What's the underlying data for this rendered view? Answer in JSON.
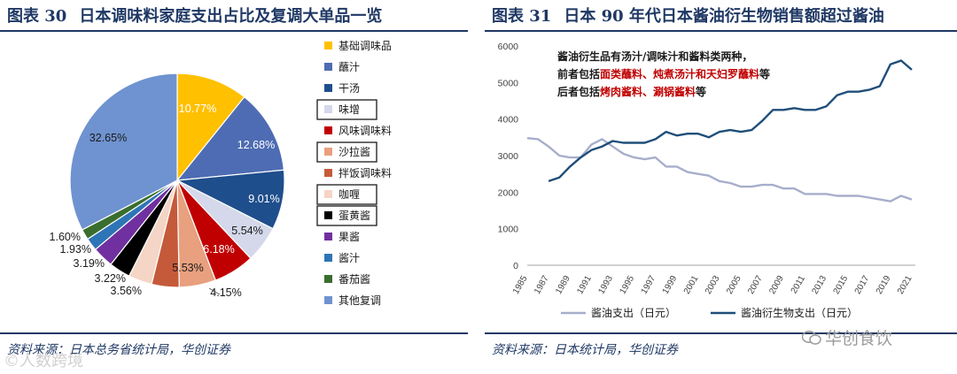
{
  "left": {
    "fig_no": "图表 30",
    "title": "日本调味料家庭支出占比及复调大单品一览",
    "source": "资料来源：日本总务省统计局，华创证券",
    "chart_data": {
      "type": "pie",
      "labels": [
        "基础调味品",
        "蘸汁",
        "干汤",
        "味增",
        "风味调味料",
        "沙拉酱",
        "拌饭调味料",
        "咖喱",
        "蛋黄酱",
        "果酱",
        "酱汁",
        "番茄酱",
        "其他复调"
      ],
      "values": [
        10.77,
        12.68,
        9.01,
        5.54,
        6.18,
        5.53,
        4.15,
        3.56,
        3.22,
        3.19,
        1.93,
        1.6,
        32.65
      ],
      "value_labels": [
        "10.77%",
        "12.68%",
        "9.01%",
        "5.54%",
        "6.18%",
        "5.53%",
        "4.15%",
        "3.56%",
        "3.22%",
        "3.19%",
        "1.93%",
        "1.60%",
        "32.65%"
      ],
      "colors": [
        "#FFC000",
        "#4E6CB3",
        "#1F4E8C",
        "#D4D8EA",
        "#C00000",
        "#E8A07E",
        "#C55A3A",
        "#F5D5C5",
        "#000000",
        "#7030A0",
        "#2E75B6",
        "#3A6E2E",
        "#6F93D0"
      ],
      "boxed_legend": [
        "味增",
        "沙拉酱",
        "咖喱",
        "蛋黄酱"
      ]
    }
  },
  "right": {
    "fig_no": "图表 31",
    "title": "日本 90 年代日本酱油衍生物销售额超过酱油",
    "source": "资料来源：日本统计局，华创证券",
    "annotation": {
      "line1": "酱油衍生品有汤汁/调味汁和酱料类两种，",
      "line2_prefix": "前者包括",
      "line2_red": "面类蘸料、炖煮汤汁和天妇罗蘸料",
      "line2_suffix": "等",
      "line3_prefix": "后者包括",
      "line3_red": "烤肉酱料、涮锅酱料",
      "line3_suffix": "等"
    },
    "chart_data": {
      "type": "line",
      "x": [
        1985,
        1986,
        1987,
        1988,
        1989,
        1990,
        1991,
        1992,
        1993,
        1994,
        1995,
        1996,
        1997,
        1998,
        1999,
        2000,
        2001,
        2002,
        2003,
        2004,
        2005,
        2006,
        2007,
        2008,
        2009,
        2010,
        2011,
        2012,
        2013,
        2014,
        2015,
        2016,
        2017,
        2018,
        2019,
        2020,
        2021
      ],
      "x_ticks": [
        1985,
        1987,
        1989,
        1991,
        1993,
        1995,
        1997,
        1999,
        2001,
        2003,
        2005,
        2007,
        2009,
        2011,
        2013,
        2015,
        2017,
        2019,
        2021
      ],
      "ylim": [
        0,
        6000
      ],
      "y_ticks": [
        0,
        1000,
        2000,
        3000,
        4000,
        5000,
        6000
      ],
      "series": [
        {
          "name": "酱油支出（日元）",
          "color": "#A7AECB",
          "values": [
            3480,
            3450,
            3250,
            3000,
            2950,
            2950,
            3300,
            3450,
            3250,
            3050,
            2950,
            2900,
            2950,
            2700,
            2700,
            2550,
            2500,
            2450,
            2300,
            2250,
            2150,
            2150,
            2200,
            2200,
            2100,
            2100,
            1950,
            1950,
            1950,
            1900,
            1900,
            1900,
            1850,
            1800,
            1750,
            1900,
            1800
          ]
        },
        {
          "name": "酱油衍生物支出（日元）",
          "color": "#1F4E79",
          "values": [
            null,
            null,
            2300,
            2400,
            2700,
            2950,
            3150,
            3250,
            3400,
            3350,
            3350,
            3350,
            3450,
            3650,
            3550,
            3600,
            3600,
            3500,
            3650,
            3700,
            3650,
            3700,
            3950,
            4250,
            4250,
            4300,
            4250,
            4250,
            4350,
            4650,
            4750,
            4750,
            4800,
            4900,
            5500,
            5600,
            5350
          ]
        }
      ]
    }
  },
  "watermarks": {
    "left": "©人数跨境",
    "right": "华创食饮"
  }
}
